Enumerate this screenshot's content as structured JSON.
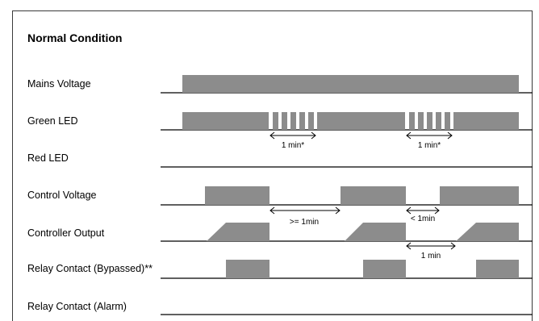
{
  "title": "Normal Condition",
  "signals": [
    {
      "id": "mains",
      "label": "Mains Voltage"
    },
    {
      "id": "green",
      "label": "Green LED"
    },
    {
      "id": "red",
      "label": "Red LED"
    },
    {
      "id": "control",
      "label": "Control Voltage"
    },
    {
      "id": "output",
      "label": "Controller Output"
    },
    {
      "id": "relay_bypass",
      "label": "Relay Contact (Bypassed)**"
    },
    {
      "id": "relay_alarm",
      "label": "Relay Contact (Alarm)"
    }
  ],
  "annotations": {
    "green_1": "1 min*",
    "green_2": "1 min*",
    "ctrl_a": ">= 1min",
    "ctrl_b": "< 1min",
    "out_a": "1 min"
  },
  "colors": {
    "fill": "#8c8c8c",
    "line": "#000000",
    "frame": "#3a3a3a"
  }
}
